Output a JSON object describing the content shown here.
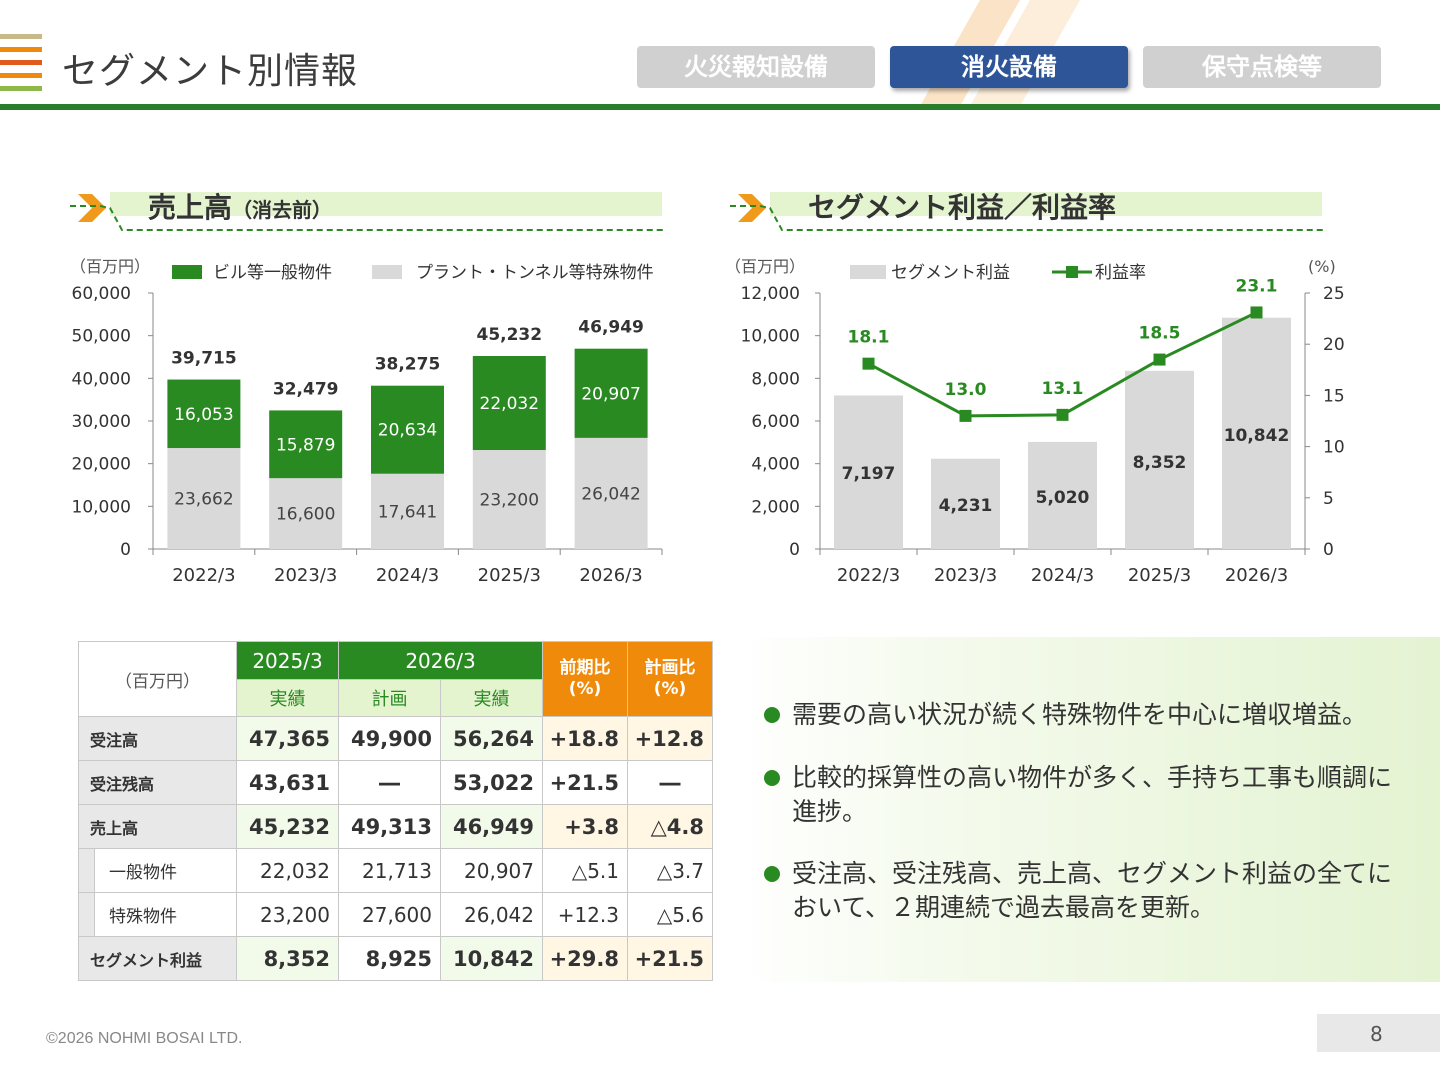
{
  "header": {
    "title": "セグメント別情報",
    "tabs": [
      {
        "label": "火災報知設備",
        "active": false
      },
      {
        "label": "消火設備",
        "active": true
      },
      {
        "label": "保守点検等",
        "active": false
      }
    ],
    "logo_colors": [
      "#c8b98a",
      "#ef8a0b",
      "#e05a1e",
      "#8db84a"
    ],
    "accent_color": "#2a7d2a"
  },
  "sales_section": {
    "title": "売上高",
    "title_note": "（消去前）"
  },
  "profit_section": {
    "title": "セグメント利益／利益率"
  },
  "chart_data": [
    {
      "type": "bar",
      "stacked": true,
      "unit_label": "（百万円）",
      "categories": [
        "2022/3",
        "2023/3",
        "2024/3",
        "2025/3",
        "2026/3"
      ],
      "series": [
        {
          "name": "ビル等一般物件",
          "values": [
            16053,
            15879,
            20634,
            22032,
            20907
          ],
          "color": "#2a8a22"
        },
        {
          "name": "プラント・トンネル等特殊物件",
          "values": [
            23662,
            16600,
            17641,
            23200,
            26042
          ],
          "color": "#d9d9d9"
        }
      ],
      "totals": [
        39715,
        32479,
        38275,
        45232,
        46949
      ],
      "yticks": [
        0,
        10000,
        20000,
        30000,
        40000,
        50000,
        60000
      ],
      "ylim": [
        0,
        60000
      ],
      "legend_position": "top"
    },
    {
      "type": "bar",
      "unit_label": "（百万円）",
      "unit_label_right": "(%)",
      "categories": [
        "2022/3",
        "2023/3",
        "2024/3",
        "2025/3",
        "2026/3"
      ],
      "series": [
        {
          "name": "セグメント利益",
          "type": "bar",
          "values": [
            7197,
            4231,
            5020,
            8352,
            10842
          ],
          "color": "#d9d9d9"
        },
        {
          "name": "利益率",
          "type": "line",
          "axis": "right",
          "values": [
            18.1,
            13.0,
            13.1,
            18.5,
            23.1
          ],
          "color": "#2a8a22"
        }
      ],
      "yticks": [
        0,
        2000,
        4000,
        6000,
        8000,
        10000,
        12000
      ],
      "ylim": [
        0,
        12000
      ],
      "yticks_right": [
        0,
        5,
        10,
        15,
        20,
        25
      ],
      "ylim_right": [
        0,
        25
      ],
      "legend_position": "top"
    }
  ],
  "table": {
    "corner": "（百万円）",
    "group_2025": "2025/3",
    "group_2026": "2026/3",
    "sub_act_2025": "実績",
    "sub_plan": "計画",
    "sub_act_2026": "実績",
    "yoy_head": "前期比",
    "plan_head": "計画比",
    "pct_unit": "(%)",
    "rows": [
      {
        "label": "受注高",
        "v2025": "47,365",
        "plan": "49,900",
        "v2026": "56,264",
        "yoy": "+18.8",
        "vs_plan": "+12.8"
      },
      {
        "label": "受注残高",
        "v2025": "43,631",
        "plan": "―",
        "v2026": "53,022",
        "yoy": "+21.5",
        "vs_plan": "―"
      },
      {
        "label": "売上高",
        "v2025": "45,232",
        "plan": "49,313",
        "v2026": "46,949",
        "yoy": "+3.8",
        "vs_plan": "△4.8"
      },
      {
        "label": "一般物件",
        "v2025": "22,032",
        "plan": "21,713",
        "v2026": "20,907",
        "yoy": "△5.1",
        "vs_plan": "△3.7"
      },
      {
        "label": "特殊物件",
        "v2025": "23,200",
        "plan": "27,600",
        "v2026": "26,042",
        "yoy": "+12.3",
        "vs_plan": "△5.6"
      },
      {
        "label": "セグメント利益",
        "v2025": "8,352",
        "plan": "8,925",
        "v2026": "10,842",
        "yoy": "+29.8",
        "vs_plan": "+21.5"
      }
    ]
  },
  "comments": [
    "需要の高い状況が続く特殊物件を中心に増収増益。",
    "比較的採算性の高い物件が多く、手持ち工事も順調に進捗。",
    "受注高、受注残高、売上高、セグメント利益の全てにおいて、２期連続で過去最高を更新。"
  ],
  "footer": {
    "copyright": "©2026 NOHMI BOSAI LTD.",
    "page_number": "8"
  }
}
